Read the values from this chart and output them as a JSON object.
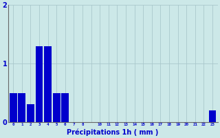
{
  "xlabel": "Précipitations 1h ( mm )",
  "values": [
    0.5,
    0.5,
    0.3,
    1.3,
    1.3,
    0.5,
    0.5,
    0.0,
    0.0,
    0.0,
    0.0,
    0.0,
    0.0,
    0.0,
    0.0,
    0.0,
    0.0,
    0.0,
    0.0,
    0.0,
    0.0,
    0.0,
    0.0,
    0.2
  ],
  "bar_color": "#0000cc",
  "bg_color": "#cce8e8",
  "grid_color": "#aac8cc",
  "tick_color": "#0000cc",
  "xlabel_color": "#0000cc",
  "ylim": [
    0,
    2.0
  ],
  "yticks": [
    0,
    1,
    2
  ],
  "xlabels": [
    "0",
    "1",
    "2",
    "3",
    "4",
    "5",
    "6",
    "7",
    "8",
    "",
    "10",
    "11",
    "12",
    "13",
    "14",
    "15",
    "16",
    "17",
    "18",
    "19",
    "20",
    "21",
    "22",
    "23"
  ]
}
